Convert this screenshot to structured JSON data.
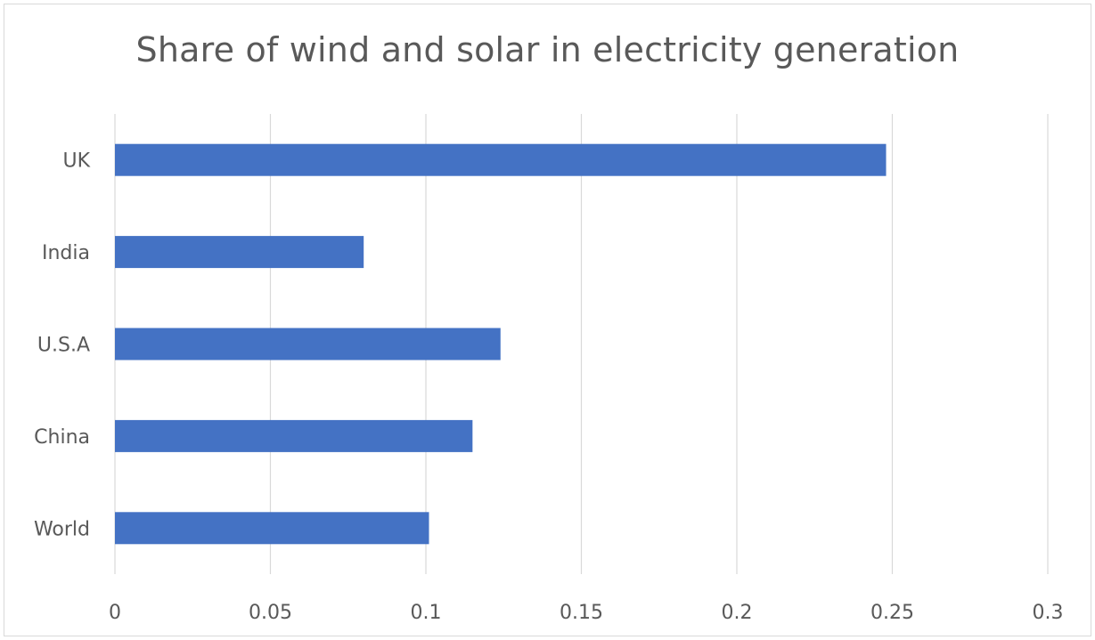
{
  "chart_data": {
    "type": "bar",
    "orientation": "horizontal",
    "title": "Share of wind and solar in electricity generation",
    "categories": [
      "UK",
      "India",
      "U.S.A",
      "China",
      "World"
    ],
    "values": [
      0.248,
      0.08,
      0.124,
      0.115,
      0.101
    ],
    "xlim": [
      0,
      0.3
    ],
    "xticks": [
      "0",
      "0.05",
      "0.1",
      "0.15",
      "0.2",
      "0.25",
      "0.3"
    ],
    "xtick_values": [
      0,
      0.05,
      0.1,
      0.15,
      0.2,
      0.25,
      0.3
    ],
    "grid": "vertical",
    "legend": "none",
    "colors": {
      "bar": "#4472C4",
      "grid": "#d9d9d9",
      "text": "#595959"
    }
  }
}
